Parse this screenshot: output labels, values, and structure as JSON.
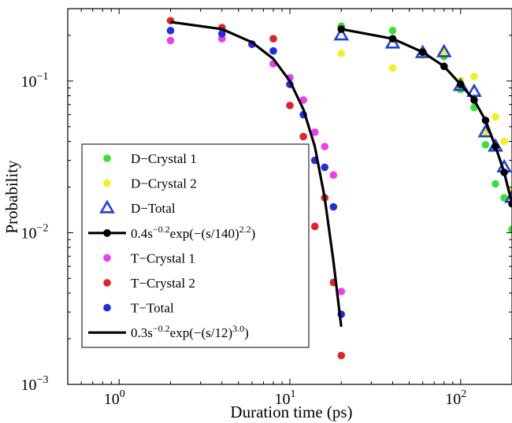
{
  "chart_data": {
    "type": "scatter",
    "xlabel": "Duration time (ps)",
    "ylabel": "Probability",
    "xscale": "log",
    "yscale": "log",
    "xlim": [
      0.5,
      200
    ],
    "ylim": [
      0.001,
      0.3
    ],
    "x_ticks": [
      {
        "value": 1,
        "base": "10",
        "exp": "0"
      },
      {
        "value": 10,
        "base": "10",
        "exp": "1"
      },
      {
        "value": 100,
        "base": "10",
        "exp": "2"
      }
    ],
    "y_ticks": [
      {
        "value": 0.001,
        "base": "10",
        "exp": "−3"
      },
      {
        "value": 0.01,
        "base": "10",
        "exp": "−2"
      },
      {
        "value": 0.1,
        "base": "10",
        "exp": "−1"
      }
    ],
    "grid": false,
    "legend_position": "left",
    "series": [
      {
        "name": "D−Crystal 1",
        "marker": "circle",
        "color": "#33e533",
        "x": [
          20,
          40,
          60,
          80,
          100,
          120,
          140,
          160,
          180,
          200
        ],
        "y": [
          0.23,
          0.215,
          0.15,
          0.145,
          0.088,
          0.067,
          0.038,
          0.021,
          0.017,
          0.0105
        ]
      },
      {
        "name": "D−Crystal 2",
        "marker": "circle",
        "color": "#f2f21a",
        "x": [
          20,
          40,
          60,
          80,
          100,
          120,
          140,
          160,
          180,
          200
        ],
        "y": [
          0.152,
          0.122,
          0.148,
          0.155,
          0.101,
          0.107,
          0.046,
          0.058,
          0.04,
          0.019
        ]
      },
      {
        "name": "D−Total",
        "marker": "triangle",
        "color": "#1f3de6",
        "x": [
          20,
          40,
          60,
          80,
          100,
          120,
          140,
          160,
          180,
          200
        ],
        "y": [
          0.2,
          0.177,
          0.153,
          0.155,
          0.093,
          0.085,
          0.046,
          0.037,
          0.027,
          0.017
        ]
      },
      {
        "name": "D fit",
        "marker": "line-dot",
        "color": "#000000",
        "label_parts": {
          "prefix": "0.4s",
          "exp1": "−0.2",
          "middle": "exp(−(s/140)",
          "exp2": "2.2",
          "suffix": ")"
        },
        "x": [
          20,
          40,
          60,
          80,
          100,
          120,
          140,
          160,
          180,
          200
        ],
        "y": [
          0.22,
          0.19,
          0.155,
          0.125,
          0.095,
          0.075,
          0.055,
          0.037,
          0.025,
          0.0155
        ]
      },
      {
        "name": "T−Crystal 1",
        "marker": "circle",
        "color": "#f03cf0",
        "x": [
          2,
          4,
          6,
          8,
          10,
          12,
          14,
          16,
          18,
          20
        ],
        "y": [
          0.185,
          0.19,
          0.175,
          0.13,
          0.105,
          0.075,
          0.046,
          0.037,
          0.024,
          0.0041
        ]
      },
      {
        "name": "T−Crystal 2",
        "marker": "circle",
        "color": "#e52222",
        "x": [
          2,
          4,
          6,
          8,
          10,
          12,
          14,
          16,
          18,
          20
        ],
        "y": [
          0.25,
          0.225,
          0.175,
          0.19,
          0.069,
          0.043,
          0.011,
          0.017,
          0.0047,
          0.00155
        ]
      },
      {
        "name": "T−Total",
        "marker": "circle",
        "color": "#1f2ee6",
        "x": [
          2,
          4,
          6,
          8,
          10,
          12,
          14,
          16,
          18,
          20
        ],
        "y": [
          0.215,
          0.205,
          0.175,
          0.158,
          0.095,
          0.06,
          0.03,
          0.027,
          0.0148,
          0.0029
        ]
      },
      {
        "name": "T fit",
        "marker": "line",
        "color": "#000000",
        "label_parts": {
          "prefix": "0.3s",
          "exp1": "−0.2",
          "middle": "exp(−(s/12)",
          "exp2": "3.0",
          "suffix": ")"
        },
        "x": [
          2,
          4,
          6,
          8,
          10,
          12,
          14,
          16,
          18,
          20
        ],
        "y": [
          0.245,
          0.22,
          0.18,
          0.14,
          0.1,
          0.065,
          0.037,
          0.017,
          0.0065,
          0.0024
        ]
      }
    ]
  }
}
